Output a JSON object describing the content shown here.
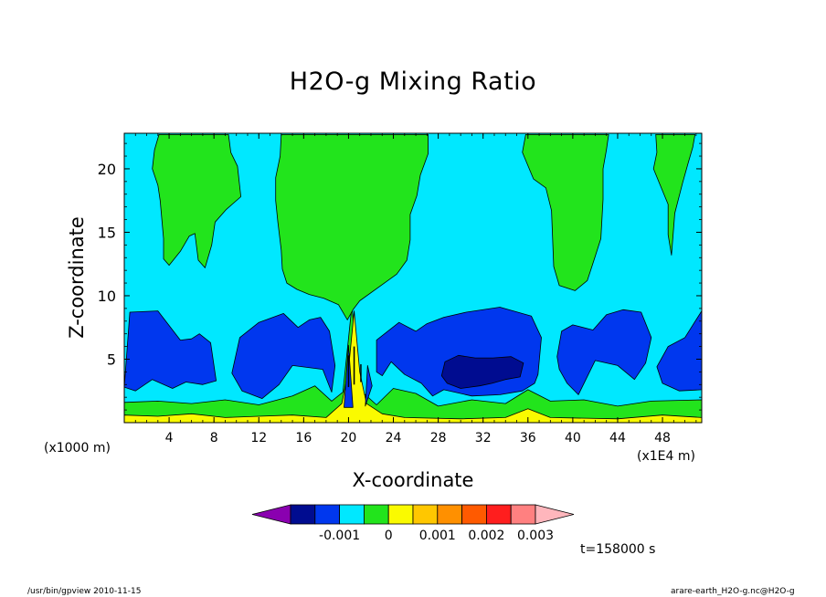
{
  "title": "H2O-g Mixing Ratio",
  "footer": {
    "left": "/usr/bin/gpview   2010-11-15",
    "right": "arare-earth_H2O-g.nc@H2O-g"
  },
  "time_label": "t=158000 s",
  "colorbar": {
    "colors": [
      "#8a00b0",
      "#000c90",
      "#0037ee",
      "#00e8ff",
      "#22e41c",
      "#fafa00",
      "#ffc700",
      "#ff9000",
      "#ff5a00",
      "#ff1e1e",
      "#ff8080",
      "#ffb6bc"
    ],
    "labels": [
      "-0.001",
      "0",
      "0.001",
      "0.002",
      "0.003"
    ]
  },
  "chart_data": {
    "type": "contour",
    "title": "H2O-g Mixing Ratio",
    "xlabel": "X-coordinate",
    "ylabel": "Z-coordinate",
    "x_unit_label": "(x1000 m)",
    "x_scale_label": "(x1E4 m)",
    "xlim": [
      0,
      51.5
    ],
    "ylim": [
      0,
      22.8
    ],
    "xticks": [
      4,
      8,
      12,
      16,
      20,
      24,
      28,
      32,
      36,
      40,
      44,
      48
    ],
    "yticks": [
      5,
      10,
      15,
      20
    ],
    "contour_levels": [
      -0.0015,
      -0.001,
      -0.0005,
      0,
      0.0005,
      0.001,
      0.0015,
      0.002,
      0.0025,
      0.003,
      0.0035
    ],
    "background_level_color": "#00e8ff",
    "regions": [
      {
        "level": "#22e41c",
        "pts": [
          [
            0,
            1.6
          ],
          [
            3,
            1.7
          ],
          [
            6,
            1.5
          ],
          [
            9,
            1.8
          ],
          [
            12,
            1.4
          ],
          [
            15,
            2.1
          ],
          [
            17,
            2.9
          ],
          [
            18.5,
            1.7
          ],
          [
            19.5,
            2.4
          ],
          [
            20.3,
            9.2
          ],
          [
            21,
            2.6
          ],
          [
            22.5,
            1.4
          ],
          [
            24,
            2.7
          ],
          [
            26,
            2.3
          ],
          [
            28,
            1.3
          ],
          [
            31,
            1.8
          ],
          [
            34,
            1.5
          ],
          [
            36,
            2.6
          ],
          [
            38,
            1.7
          ],
          [
            41,
            1.8
          ],
          [
            44,
            1.3
          ],
          [
            47,
            1.7
          ],
          [
            51.5,
            1.8
          ],
          [
            51.5,
            0
          ],
          [
            0,
            0
          ]
        ]
      },
      {
        "level": "#fafa00",
        "pts": [
          [
            0,
            0.6
          ],
          [
            3,
            0.5
          ],
          [
            6,
            0.7
          ],
          [
            9,
            0.4
          ],
          [
            12,
            0.5
          ],
          [
            15,
            0.6
          ],
          [
            18,
            0.4
          ],
          [
            19.4,
            1.5
          ],
          [
            20,
            4.2
          ],
          [
            20.5,
            8.8
          ],
          [
            21,
            4
          ],
          [
            21.6,
            1.5
          ],
          [
            23,
            0.7
          ],
          [
            25,
            0.4
          ],
          [
            30,
            0.3
          ],
          [
            34,
            0.4
          ],
          [
            36,
            1.1
          ],
          [
            38,
            0.4
          ],
          [
            44,
            0.3
          ],
          [
            48,
            0.6
          ],
          [
            51.5,
            0.4
          ],
          [
            51.5,
            0
          ],
          [
            0,
            0
          ]
        ]
      },
      {
        "level": "#0037ee",
        "pts": [
          [
            0,
            2.8
          ],
          [
            0.5,
            8.7
          ],
          [
            3,
            8.8
          ],
          [
            5,
            6.5
          ],
          [
            6,
            6.6
          ],
          [
            6.7,
            7
          ],
          [
            7.7,
            6.3
          ],
          [
            8.2,
            3.3
          ],
          [
            7,
            3
          ],
          [
            5.5,
            3.2
          ],
          [
            4.3,
            2.7
          ],
          [
            2.5,
            3.4
          ],
          [
            1,
            2.5
          ]
        ]
      },
      {
        "level": "#0037ee",
        "pts": [
          [
            9.6,
            3.9
          ],
          [
            10.3,
            6.7
          ],
          [
            12,
            7.9
          ],
          [
            14.2,
            8.6
          ],
          [
            15.5,
            7.5
          ],
          [
            16.5,
            8.1
          ],
          [
            17.5,
            8.3
          ],
          [
            18.3,
            7.2
          ],
          [
            18.8,
            4.5
          ],
          [
            18.5,
            2.4
          ],
          [
            17.7,
            4.2
          ],
          [
            15,
            4.5
          ],
          [
            13.8,
            3
          ],
          [
            12.3,
            1.9
          ],
          [
            10.5,
            2.5
          ]
        ]
      },
      {
        "level": "#0037ee",
        "pts": [
          [
            19.6,
            1.2
          ],
          [
            20,
            6.1
          ],
          [
            20.4,
            1.2
          ]
        ]
      },
      {
        "level": "#0037ee",
        "pts": [
          [
            21.5,
            1.3
          ],
          [
            21.7,
            4.5
          ],
          [
            22.1,
            2.9
          ]
        ]
      },
      {
        "level": "#0037ee",
        "pts": [
          [
            22.5,
            6.5
          ],
          [
            24.5,
            7.9
          ],
          [
            26,
            7.2
          ],
          [
            27,
            7.8
          ],
          [
            28.5,
            8.3
          ],
          [
            30.5,
            8.7
          ],
          [
            33.5,
            9.1
          ],
          [
            36.3,
            8.4
          ],
          [
            37.2,
            6.7
          ],
          [
            36.9,
            3.8
          ],
          [
            36.6,
            3.1
          ],
          [
            35.5,
            2.5
          ],
          [
            33.5,
            2.2
          ],
          [
            31,
            2.1
          ],
          [
            28.5,
            2.6
          ],
          [
            27.5,
            2.1
          ],
          [
            26.5,
            3.1
          ],
          [
            25,
            3.8
          ],
          [
            23.8,
            4.8
          ],
          [
            23,
            3.7
          ],
          [
            22.5,
            4
          ]
        ]
      },
      {
        "level": "#000c90",
        "pts": [
          [
            28.3,
            3.7
          ],
          [
            28.6,
            4.8
          ],
          [
            29.8,
            5.3
          ],
          [
            31.3,
            5.1
          ],
          [
            32.9,
            5.1
          ],
          [
            34.5,
            5.2
          ],
          [
            35.6,
            4.7
          ],
          [
            35.3,
            3.6
          ],
          [
            34,
            3.4
          ],
          [
            32.8,
            3.1
          ],
          [
            31.7,
            2.9
          ],
          [
            30,
            2.7
          ],
          [
            28.8,
            3.1
          ]
        ]
      },
      {
        "level": "#0037ee",
        "pts": [
          [
            38.6,
            5.2
          ],
          [
            39,
            7.2
          ],
          [
            40,
            7.7
          ],
          [
            41.8,
            7.3
          ],
          [
            43,
            8.5
          ],
          [
            44.5,
            8.9
          ],
          [
            46.1,
            8.7
          ],
          [
            47,
            6.7
          ],
          [
            46.5,
            4.7
          ],
          [
            45.5,
            3.4
          ],
          [
            44,
            4.5
          ],
          [
            42,
            4.9
          ],
          [
            40.5,
            2.2
          ],
          [
            39.5,
            3.1
          ],
          [
            38.8,
            4.2
          ]
        ]
      },
      {
        "level": "#0037ee",
        "pts": [
          [
            47.5,
            4.4
          ],
          [
            48.5,
            6
          ],
          [
            50,
            6.7
          ],
          [
            51.5,
            8.8
          ],
          [
            51.5,
            2.6
          ],
          [
            49.5,
            2.5
          ],
          [
            48,
            3.1
          ]
        ]
      },
      {
        "level": "#22e41c",
        "pts": [
          [
            3.1,
            22.7
          ],
          [
            2.7,
            21.5
          ],
          [
            2.5,
            20
          ],
          [
            3,
            18.7
          ],
          [
            3.2,
            17.5
          ],
          [
            3.5,
            14.5
          ],
          [
            3.5,
            12.9
          ],
          [
            4,
            12.4
          ],
          [
            5,
            13.5
          ],
          [
            5.8,
            14.7
          ],
          [
            6.3,
            14.9
          ],
          [
            6.6,
            12.8
          ],
          [
            7.2,
            12.2
          ],
          [
            7.8,
            14
          ],
          [
            8.1,
            15.8
          ],
          [
            9.1,
            16.8
          ],
          [
            10.4,
            17.8
          ],
          [
            10.1,
            20.2
          ],
          [
            9.5,
            21.3
          ],
          [
            9.3,
            22.7
          ]
        ]
      },
      {
        "level": "#22e41c",
        "pts": [
          [
            14,
            22.7
          ],
          [
            13.9,
            21
          ],
          [
            13.5,
            19.3
          ],
          [
            13.5,
            17.5
          ],
          [
            13.7,
            15.8
          ],
          [
            14,
            13.6
          ],
          [
            14.1,
            12.1
          ],
          [
            14.5,
            11
          ],
          [
            15.4,
            10.5
          ],
          [
            16.5,
            10.1
          ],
          [
            17.8,
            9.8
          ],
          [
            19.1,
            9.3
          ],
          [
            19.9,
            8.1
          ],
          [
            20.4,
            8.9
          ],
          [
            21,
            9.6
          ],
          [
            23.2,
            11
          ],
          [
            24.3,
            11.7
          ],
          [
            25.2,
            12.8
          ],
          [
            25.5,
            14.4
          ],
          [
            25.5,
            16.4
          ],
          [
            26.1,
            17.9
          ],
          [
            26.4,
            19.5
          ],
          [
            27.1,
            21.2
          ],
          [
            27.1,
            22.7
          ]
        ]
      },
      {
        "level": "#22e41c",
        "pts": [
          [
            35.8,
            22.7
          ],
          [
            35.5,
            21.3
          ],
          [
            36.5,
            19.2
          ],
          [
            37.6,
            18.5
          ],
          [
            38.1,
            16.7
          ],
          [
            38.2,
            14.5
          ],
          [
            38.3,
            12.3
          ],
          [
            38.8,
            10.8
          ],
          [
            40.2,
            10.4
          ],
          [
            41.3,
            11.2
          ],
          [
            42,
            13.1
          ],
          [
            42.5,
            14.5
          ],
          [
            42.7,
            17.6
          ],
          [
            42.7,
            20
          ],
          [
            43,
            21.5
          ],
          [
            43.2,
            22.7
          ]
        ]
      },
      {
        "level": "#22e41c",
        "pts": [
          [
            47.4,
            22.7
          ],
          [
            47.5,
            21.3
          ],
          [
            47.2,
            20
          ],
          [
            47.8,
            18.7
          ],
          [
            48.5,
            17.2
          ],
          [
            48.5,
            14.8
          ],
          [
            48.8,
            13.2
          ],
          [
            49.1,
            16.5
          ],
          [
            49.8,
            18.9
          ],
          [
            50.3,
            20.5
          ],
          [
            50.7,
            21.7
          ],
          [
            50.9,
            22.7
          ]
        ]
      }
    ]
  }
}
